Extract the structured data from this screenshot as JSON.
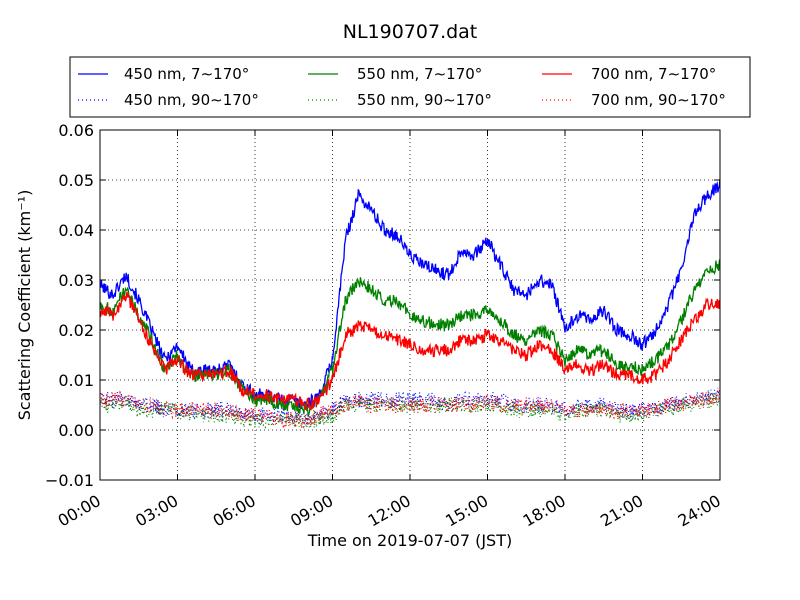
{
  "chart_data": {
    "type": "line",
    "title": "NL190707.dat",
    "xlabel": "Time on 2019-07-07 (JST)",
    "ylabel": "Scattering Coefficient (km⁻¹)",
    "xlim": [
      "00:00",
      "24:00"
    ],
    "ylim": [
      -0.01,
      0.06
    ],
    "grid": true,
    "legend": {
      "placement": "top",
      "columns": 3
    },
    "x_ticks": [
      "00:00",
      "03:00",
      "06:00",
      "09:00",
      "12:00",
      "15:00",
      "18:00",
      "21:00",
      "24:00"
    ],
    "y_ticks": [
      "−0.01",
      "0.00",
      "0.01",
      "0.02",
      "0.03",
      "0.04",
      "0.05",
      "0.06"
    ],
    "x_hours": [
      0,
      0.5,
      1,
      1.5,
      2,
      2.5,
      3,
      3.5,
      4,
      4.5,
      5,
      5.5,
      6,
      6.5,
      7,
      7.5,
      8,
      8.5,
      9,
      9.5,
      10,
      10.5,
      11,
      11.5,
      12,
      12.5,
      13,
      13.5,
      14,
      14.5,
      15,
      15.5,
      16,
      16.5,
      17,
      17.5,
      18,
      18.5,
      19,
      19.5,
      20,
      20.5,
      21,
      21.5,
      22,
      22.5,
      23,
      23.5,
      24
    ],
    "series": [
      {
        "name": "450 nm, 7∼170°",
        "color": "#0000ff",
        "style": "solid",
        "values": [
          0.029,
          0.027,
          0.031,
          0.026,
          0.02,
          0.014,
          0.017,
          0.012,
          0.012,
          0.012,
          0.013,
          0.009,
          0.007,
          0.007,
          0.006,
          0.006,
          0.005,
          0.007,
          0.014,
          0.038,
          0.047,
          0.044,
          0.04,
          0.039,
          0.035,
          0.033,
          0.032,
          0.031,
          0.036,
          0.035,
          0.038,
          0.033,
          0.028,
          0.027,
          0.03,
          0.029,
          0.02,
          0.023,
          0.022,
          0.024,
          0.02,
          0.019,
          0.017,
          0.02,
          0.025,
          0.032,
          0.043,
          0.047,
          0.049
        ]
      },
      {
        "name": "550 nm, 7∼170°",
        "color": "#008000",
        "style": "solid",
        "values": [
          0.025,
          0.024,
          0.028,
          0.023,
          0.018,
          0.012,
          0.015,
          0.011,
          0.011,
          0.011,
          0.012,
          0.008,
          0.006,
          0.006,
          0.005,
          0.005,
          0.004,
          0.006,
          0.012,
          0.026,
          0.03,
          0.028,
          0.026,
          0.026,
          0.023,
          0.022,
          0.021,
          0.021,
          0.023,
          0.023,
          0.024,
          0.022,
          0.019,
          0.018,
          0.02,
          0.019,
          0.014,
          0.016,
          0.015,
          0.016,
          0.013,
          0.013,
          0.012,
          0.014,
          0.017,
          0.022,
          0.028,
          0.032,
          0.033
        ]
      },
      {
        "name": "700 nm, 7∼170°",
        "color": "#ff0000",
        "style": "solid",
        "values": [
          0.024,
          0.023,
          0.027,
          0.022,
          0.017,
          0.012,
          0.014,
          0.011,
          0.011,
          0.011,
          0.012,
          0.008,
          0.007,
          0.007,
          0.006,
          0.006,
          0.005,
          0.006,
          0.01,
          0.019,
          0.021,
          0.02,
          0.019,
          0.018,
          0.017,
          0.016,
          0.016,
          0.016,
          0.018,
          0.018,
          0.019,
          0.018,
          0.016,
          0.015,
          0.017,
          0.016,
          0.012,
          0.013,
          0.012,
          0.013,
          0.011,
          0.011,
          0.01,
          0.011,
          0.014,
          0.018,
          0.022,
          0.025,
          0.025
        ]
      },
      {
        "name": "450 nm, 90∼170°",
        "color": "#0000ff",
        "style": "dotted",
        "values": [
          0.006,
          0.006,
          0.006,
          0.005,
          0.005,
          0.004,
          0.004,
          0.004,
          0.004,
          0.004,
          0.004,
          0.003,
          0.003,
          0.003,
          0.003,
          0.002,
          0.002,
          0.003,
          0.004,
          0.006,
          0.006,
          0.006,
          0.006,
          0.006,
          0.006,
          0.006,
          0.006,
          0.005,
          0.006,
          0.006,
          0.006,
          0.006,
          0.005,
          0.005,
          0.005,
          0.005,
          0.004,
          0.005,
          0.005,
          0.005,
          0.004,
          0.004,
          0.004,
          0.004,
          0.005,
          0.006,
          0.006,
          0.007,
          0.007
        ]
      },
      {
        "name": "550 nm, 90∼170°",
        "color": "#008000",
        "style": "dotted",
        "values": [
          0.005,
          0.005,
          0.005,
          0.004,
          0.004,
          0.004,
          0.004,
          0.003,
          0.003,
          0.003,
          0.003,
          0.002,
          0.002,
          0.002,
          0.002,
          0.002,
          0.002,
          0.002,
          0.003,
          0.005,
          0.005,
          0.005,
          0.005,
          0.005,
          0.005,
          0.005,
          0.005,
          0.005,
          0.005,
          0.005,
          0.005,
          0.005,
          0.004,
          0.004,
          0.004,
          0.004,
          0.003,
          0.004,
          0.004,
          0.004,
          0.003,
          0.003,
          0.003,
          0.004,
          0.004,
          0.005,
          0.005,
          0.006,
          0.006
        ]
      },
      {
        "name": "700 nm, 90∼170°",
        "color": "#ff0000",
        "style": "dotted",
        "values": [
          0.006,
          0.006,
          0.006,
          0.005,
          0.005,
          0.004,
          0.004,
          0.004,
          0.004,
          0.004,
          0.004,
          0.003,
          0.003,
          0.003,
          0.002,
          0.002,
          0.002,
          0.003,
          0.004,
          0.005,
          0.006,
          0.005,
          0.005,
          0.005,
          0.005,
          0.005,
          0.005,
          0.005,
          0.005,
          0.005,
          0.006,
          0.005,
          0.005,
          0.005,
          0.005,
          0.005,
          0.004,
          0.004,
          0.004,
          0.004,
          0.004,
          0.004,
          0.004,
          0.004,
          0.005,
          0.005,
          0.006,
          0.006,
          0.007
        ]
      }
    ]
  }
}
